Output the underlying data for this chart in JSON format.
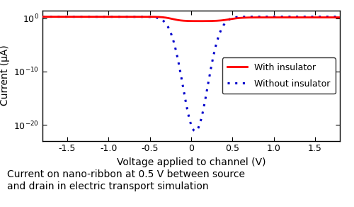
{
  "xlabel": "Voltage applied to channel (V)",
  "ylabel": "Current (μA)",
  "caption": "Current on nano-ribbon at 0.5 V between source\nand drain in electric transport simulation",
  "xlim": [
    -1.8,
    1.8
  ],
  "ylim_log_min": -23,
  "ylim_log_max": 1.5,
  "yticks": [
    1.0,
    1e-10,
    1e-20
  ],
  "xticks": [
    -1.5,
    -1.0,
    -0.5,
    0.0,
    0.5,
    1.0,
    1.5
  ],
  "red_color": "#ff0000",
  "blue_color": "#0000cc",
  "legend_entries": [
    "With insulator",
    "Without insulator"
  ],
  "figsize": [
    5.0,
    2.92
  ],
  "dpi": 100
}
